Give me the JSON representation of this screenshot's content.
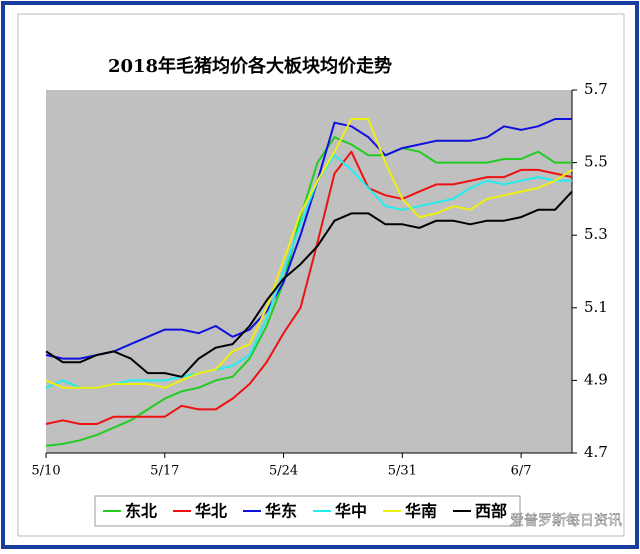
{
  "chart_data": {
    "type": "line",
    "title": "2018年毛猪均价各大板块均价走势",
    "categories": [
      "5/10",
      null,
      null,
      null,
      null,
      null,
      null,
      "5/17",
      null,
      null,
      null,
      null,
      null,
      null,
      "5/24",
      null,
      null,
      null,
      null,
      null,
      null,
      "5/31",
      null,
      null,
      null,
      null,
      null,
      null,
      "6/7",
      null,
      null,
      null
    ],
    "ylim": [
      4.7,
      5.7
    ],
    "yticks": [
      4.7,
      4.9,
      5.1,
      5.3,
      5.5,
      5.7
    ],
    "y_axis_side": "right",
    "grid": false,
    "series": [
      {
        "name": "东北",
        "color": "#22cc22",
        "values": [
          4.72,
          4.725,
          4.735,
          4.75,
          4.77,
          4.79,
          4.82,
          4.85,
          4.87,
          4.88,
          4.9,
          4.91,
          4.96,
          5.05,
          5.17,
          5.35,
          5.5,
          5.57,
          5.55,
          5.52,
          5.52,
          5.54,
          5.53,
          5.5,
          5.5,
          5.5,
          5.5,
          5.51,
          5.51,
          5.53,
          5.5,
          5.5
        ]
      },
      {
        "name": "华北",
        "color": "#ee1111",
        "values": [
          4.78,
          4.79,
          4.78,
          4.78,
          4.8,
          4.8,
          4.8,
          4.8,
          4.83,
          4.82,
          4.82,
          4.85,
          4.89,
          4.95,
          5.03,
          5.1,
          5.28,
          5.47,
          5.53,
          5.43,
          5.41,
          5.4,
          5.42,
          5.44,
          5.44,
          5.45,
          5.46,
          5.46,
          5.48,
          5.48,
          5.47,
          5.46
        ]
      },
      {
        "name": "华东",
        "color": "#1111dd",
        "values": [
          4.97,
          4.96,
          4.96,
          4.97,
          4.98,
          5.0,
          5.02,
          5.04,
          5.04,
          5.03,
          5.05,
          5.02,
          5.04,
          5.09,
          5.17,
          5.3,
          5.45,
          5.61,
          5.6,
          5.57,
          5.52,
          5.54,
          5.55,
          5.56,
          5.56,
          5.56,
          5.57,
          5.6,
          5.59,
          5.6,
          5.62,
          5.62
        ]
      },
      {
        "name": "华中",
        "color": "#22eeee",
        "values": [
          4.88,
          4.9,
          4.88,
          4.88,
          4.89,
          4.9,
          4.9,
          4.9,
          4.91,
          4.92,
          4.93,
          4.94,
          4.97,
          5.07,
          5.2,
          5.33,
          5.45,
          5.52,
          5.48,
          5.43,
          5.38,
          5.37,
          5.38,
          5.39,
          5.4,
          5.43,
          5.45,
          5.44,
          5.45,
          5.46,
          5.45,
          5.45
        ]
      },
      {
        "name": "华南",
        "color": "#eeee11",
        "values": [
          4.9,
          4.88,
          4.88,
          4.88,
          4.89,
          4.89,
          4.89,
          4.88,
          4.9,
          4.92,
          4.93,
          4.98,
          5.0,
          5.1,
          5.23,
          5.36,
          5.45,
          5.53,
          5.62,
          5.62,
          5.5,
          5.4,
          5.35,
          5.36,
          5.38,
          5.37,
          5.4,
          5.41,
          5.42,
          5.43,
          5.45,
          5.48
        ]
      },
      {
        "name": "西部",
        "color": "#000000",
        "values": [
          4.98,
          4.95,
          4.95,
          4.97,
          4.98,
          4.96,
          4.92,
          4.92,
          4.91,
          4.96,
          4.99,
          5.0,
          5.05,
          5.12,
          5.18,
          5.22,
          5.27,
          5.34,
          5.36,
          5.36,
          5.33,
          5.33,
          5.32,
          5.34,
          5.34,
          5.33,
          5.34,
          5.34,
          5.35,
          5.37,
          5.37,
          5.42
        ]
      }
    ]
  },
  "watermark": "爱普罗斯每日资讯"
}
